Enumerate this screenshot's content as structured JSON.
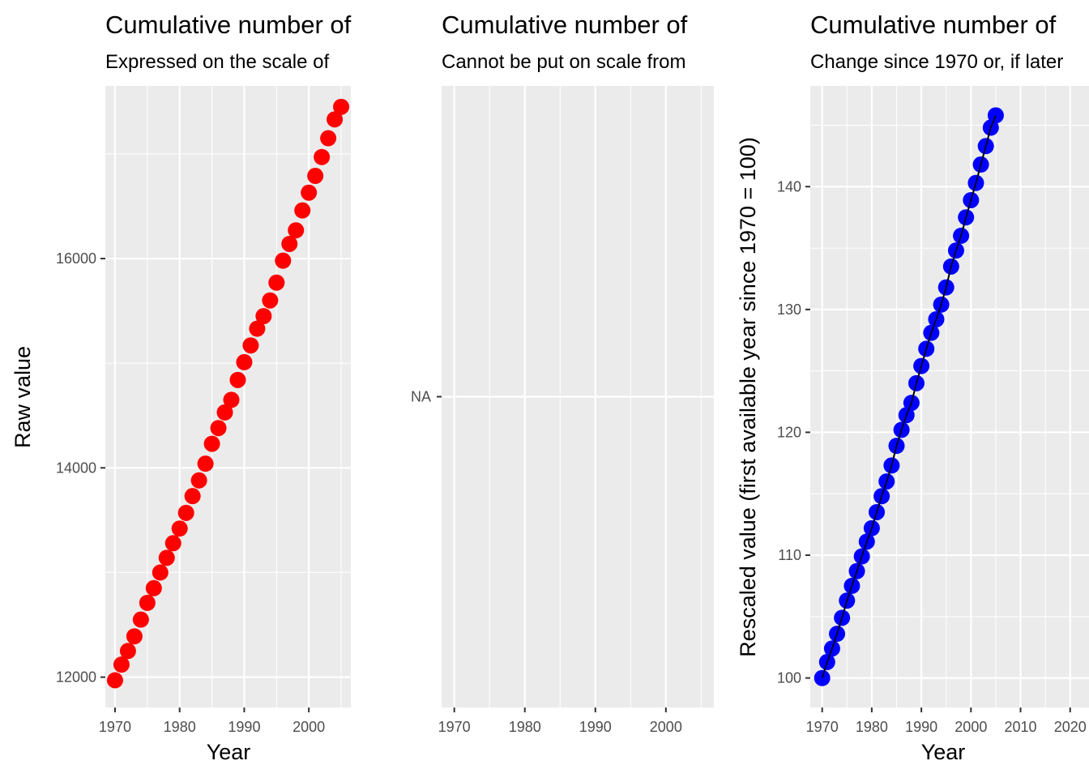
{
  "chart_data": [
    {
      "type": "scatter",
      "title": "Cumulative number of",
      "subtitle": "Expressed on the scale of",
      "xlabel": "Year",
      "ylabel": "Raw value",
      "xlim": [
        1968.5,
        2006.5
      ],
      "ylim": [
        11710,
        17650
      ],
      "x_ticks": [
        "1970",
        "1980",
        "1990",
        "2000"
      ],
      "y_ticks": [
        "12000",
        "14000",
        "16000"
      ],
      "grid": true,
      "point_color": "#ff0000",
      "series": [
        {
          "x": [
            1970,
            1971,
            1972,
            1973,
            1974,
            1975,
            1976,
            1977,
            1978,
            1979,
            1980,
            1981,
            1982,
            1983,
            1984,
            1985,
            1986,
            1987,
            1988,
            1989,
            1990,
            1991,
            1992,
            1993,
            1994,
            1995,
            1996,
            1997,
            1998,
            1999,
            2000,
            2001,
            2002,
            2003,
            2004,
            2005
          ],
          "y": [
            11970,
            12120,
            12250,
            12390,
            12550,
            12710,
            12850,
            13000,
            13140,
            13280,
            13420,
            13570,
            13730,
            13880,
            14040,
            14230,
            14380,
            14530,
            14650,
            14840,
            15010,
            15170,
            15330,
            15450,
            15600,
            15770,
            15980,
            16140,
            16270,
            16460,
            16630,
            16790,
            16970,
            17150,
            17330,
            17450
          ]
        }
      ]
    },
    {
      "type": "scatter",
      "title": "Cumulative number of",
      "subtitle": "Cannot be put on scale from",
      "xlabel": "",
      "ylabel": "",
      "xlim": [
        1968.2,
        2006.8
      ],
      "x_ticks": [
        "1970",
        "1980",
        "1990",
        "2000"
      ],
      "y_ticks": [
        "NA"
      ],
      "grid": true,
      "series": []
    },
    {
      "type": "line",
      "title": "Cumulative number of",
      "subtitle": "Change since 1970 or, if later",
      "xlabel": "Year",
      "ylabel": "Rescaled value (first available year since 1970 = 100)",
      "xlim": [
        1967.6,
        2023.8
      ],
      "ylim": [
        97.6,
        148.2
      ],
      "x_ticks": [
        "1970",
        "1980",
        "1990",
        "2000",
        "2010",
        "2020"
      ],
      "y_ticks": [
        "100",
        "110",
        "120",
        "130",
        "140"
      ],
      "grid": true,
      "point_color": "#0000ff",
      "line_color": "#000000",
      "series": [
        {
          "x": [
            1970,
            1971,
            1972,
            1973,
            1974,
            1975,
            1976,
            1977,
            1978,
            1979,
            1980,
            1981,
            1982,
            1983,
            1984,
            1985,
            1986,
            1987,
            1988,
            1989,
            1990,
            1991,
            1992,
            1993,
            1994,
            1995,
            1996,
            1997,
            1998,
            1999,
            2000,
            2001,
            2002,
            2003,
            2004,
            2005
          ],
          "y": [
            100,
            101.3,
            102.4,
            103.6,
            104.9,
            106.3,
            107.5,
            108.7,
            109.9,
            111.1,
            112.2,
            113.5,
            114.8,
            116.0,
            117.3,
            118.9,
            120.2,
            121.4,
            122.4,
            124.0,
            125.4,
            126.8,
            128.1,
            129.2,
            130.4,
            131.8,
            133.5,
            134.8,
            136.0,
            137.5,
            138.9,
            140.3,
            141.8,
            143.3,
            144.8,
            145.8
          ]
        }
      ]
    }
  ]
}
